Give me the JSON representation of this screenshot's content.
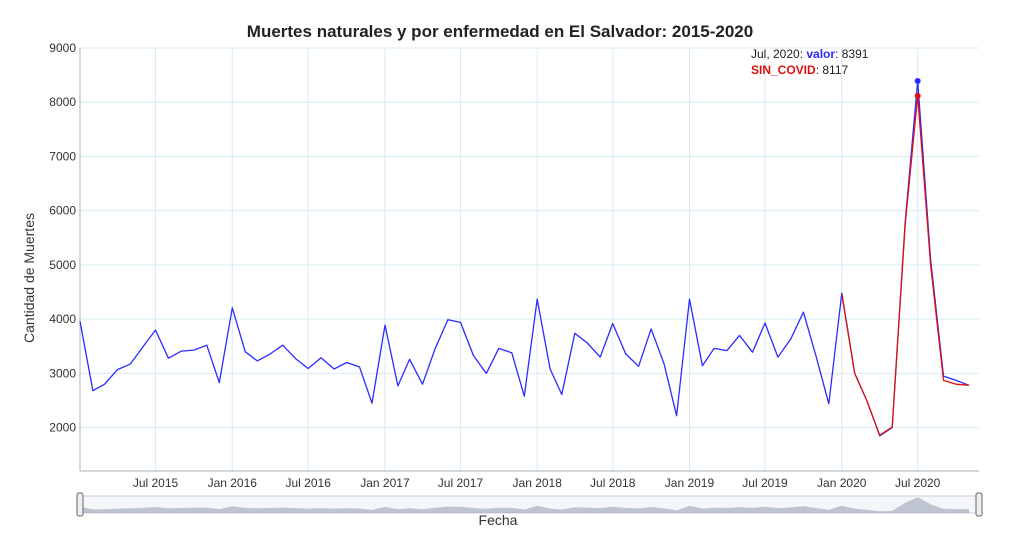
{
  "chart_data": {
    "type": "line",
    "title": "Muertes naturales y por enfermedad en El Salvador: 2015-2020",
    "xlabel": "Fecha",
    "ylabel": "Cantidad de Muertes",
    "ylim": [
      1200,
      9000
    ],
    "yticks": [
      2000,
      3000,
      4000,
      5000,
      6000,
      7000,
      8000,
      9000
    ],
    "xlim": [
      "2015-01-01",
      "2020-11-25"
    ],
    "xticks": [
      {
        "date": "2015-07-01",
        "label": "Jul 2015"
      },
      {
        "date": "2016-01-01",
        "label": "Jan 2016"
      },
      {
        "date": "2016-07-01",
        "label": "Jul 2016"
      },
      {
        "date": "2017-01-01",
        "label": "Jan 2017"
      },
      {
        "date": "2017-07-01",
        "label": "Jul 2017"
      },
      {
        "date": "2018-01-01",
        "label": "Jan 2018"
      },
      {
        "date": "2018-07-01",
        "label": "Jul 2018"
      },
      {
        "date": "2019-01-01",
        "label": "Jan 2019"
      },
      {
        "date": "2019-07-01",
        "label": "Jul 2019"
      },
      {
        "date": "2020-01-01",
        "label": "Jan 2020"
      },
      {
        "date": "2020-07-01",
        "label": "Jul 2020"
      }
    ],
    "grid": true,
    "series": [
      {
        "name": "valor",
        "color": "#2b2bff",
        "x": [
          "2015-01-01",
          "2015-02-01",
          "2015-03-01",
          "2015-04-01",
          "2015-05-01",
          "2015-06-01",
          "2015-07-01",
          "2015-08-01",
          "2015-09-01",
          "2015-10-01",
          "2015-11-01",
          "2015-12-01",
          "2016-01-01",
          "2016-02-01",
          "2016-03-01",
          "2016-04-01",
          "2016-05-01",
          "2016-06-01",
          "2016-07-01",
          "2016-08-01",
          "2016-09-01",
          "2016-10-01",
          "2016-11-01",
          "2016-12-01",
          "2017-01-01",
          "2017-02-01",
          "2017-03-01",
          "2017-04-01",
          "2017-05-01",
          "2017-06-01",
          "2017-07-01",
          "2017-08-01",
          "2017-09-01",
          "2017-10-01",
          "2017-11-01",
          "2017-12-01",
          "2018-01-01",
          "2018-02-01",
          "2018-03-01",
          "2018-04-01",
          "2018-05-01",
          "2018-06-01",
          "2018-07-01",
          "2018-08-01",
          "2018-09-01",
          "2018-10-01",
          "2018-11-01",
          "2018-12-01",
          "2019-01-01",
          "2019-02-01",
          "2019-03-01",
          "2019-04-01",
          "2019-05-01",
          "2019-06-01",
          "2019-07-01",
          "2019-08-01",
          "2019-09-01",
          "2019-10-01",
          "2019-11-01",
          "2019-12-01",
          "2020-01-01",
          "2020-02-01",
          "2020-03-01",
          "2020-04-01",
          "2020-05-01",
          "2020-06-01",
          "2020-07-01",
          "2020-08-01",
          "2020-09-01",
          "2020-10-01",
          "2020-11-01"
        ],
        "values": [
          3960,
          2680,
          2800,
          3070,
          3170,
          3490,
          3800,
          3280,
          3410,
          3430,
          3520,
          2830,
          4210,
          3400,
          3230,
          3360,
          3520,
          3270,
          3090,
          3290,
          3080,
          3200,
          3120,
          2450,
          3890,
          2770,
          3260,
          2800,
          3450,
          3990,
          3940,
          3330,
          3000,
          3460,
          3380,
          2580,
          4370,
          3080,
          2610,
          3740,
          3560,
          3300,
          3920,
          3360,
          3130,
          3820,
          3180,
          2220,
          4370,
          3140,
          3460,
          3420,
          3700,
          3390,
          3930,
          3300,
          3640,
          4130,
          3300,
          2440,
          4480,
          3000,
          2500,
          1850,
          2000,
          5800,
          8391,
          5100,
          2950,
          2870,
          2780
        ]
      },
      {
        "name": "SIN_COVID",
        "color": "#e01010",
        "x": [
          "2020-01-01",
          "2020-02-01",
          "2020-03-01",
          "2020-04-01",
          "2020-05-01",
          "2020-06-01",
          "2020-07-01",
          "2020-08-01",
          "2020-09-01",
          "2020-10-01",
          "2020-11-01"
        ],
        "values": [
          4460,
          3000,
          2500,
          1860,
          2010,
          5750,
          8117,
          5000,
          2870,
          2800,
          2780
        ]
      }
    ],
    "hover": {
      "date_label": "Jul, 2020",
      "x": "2020-07-01",
      "entries": [
        {
          "series": "valor",
          "value": "8391"
        },
        {
          "series": "SIN_COVID",
          "value": "8117"
        }
      ]
    }
  }
}
